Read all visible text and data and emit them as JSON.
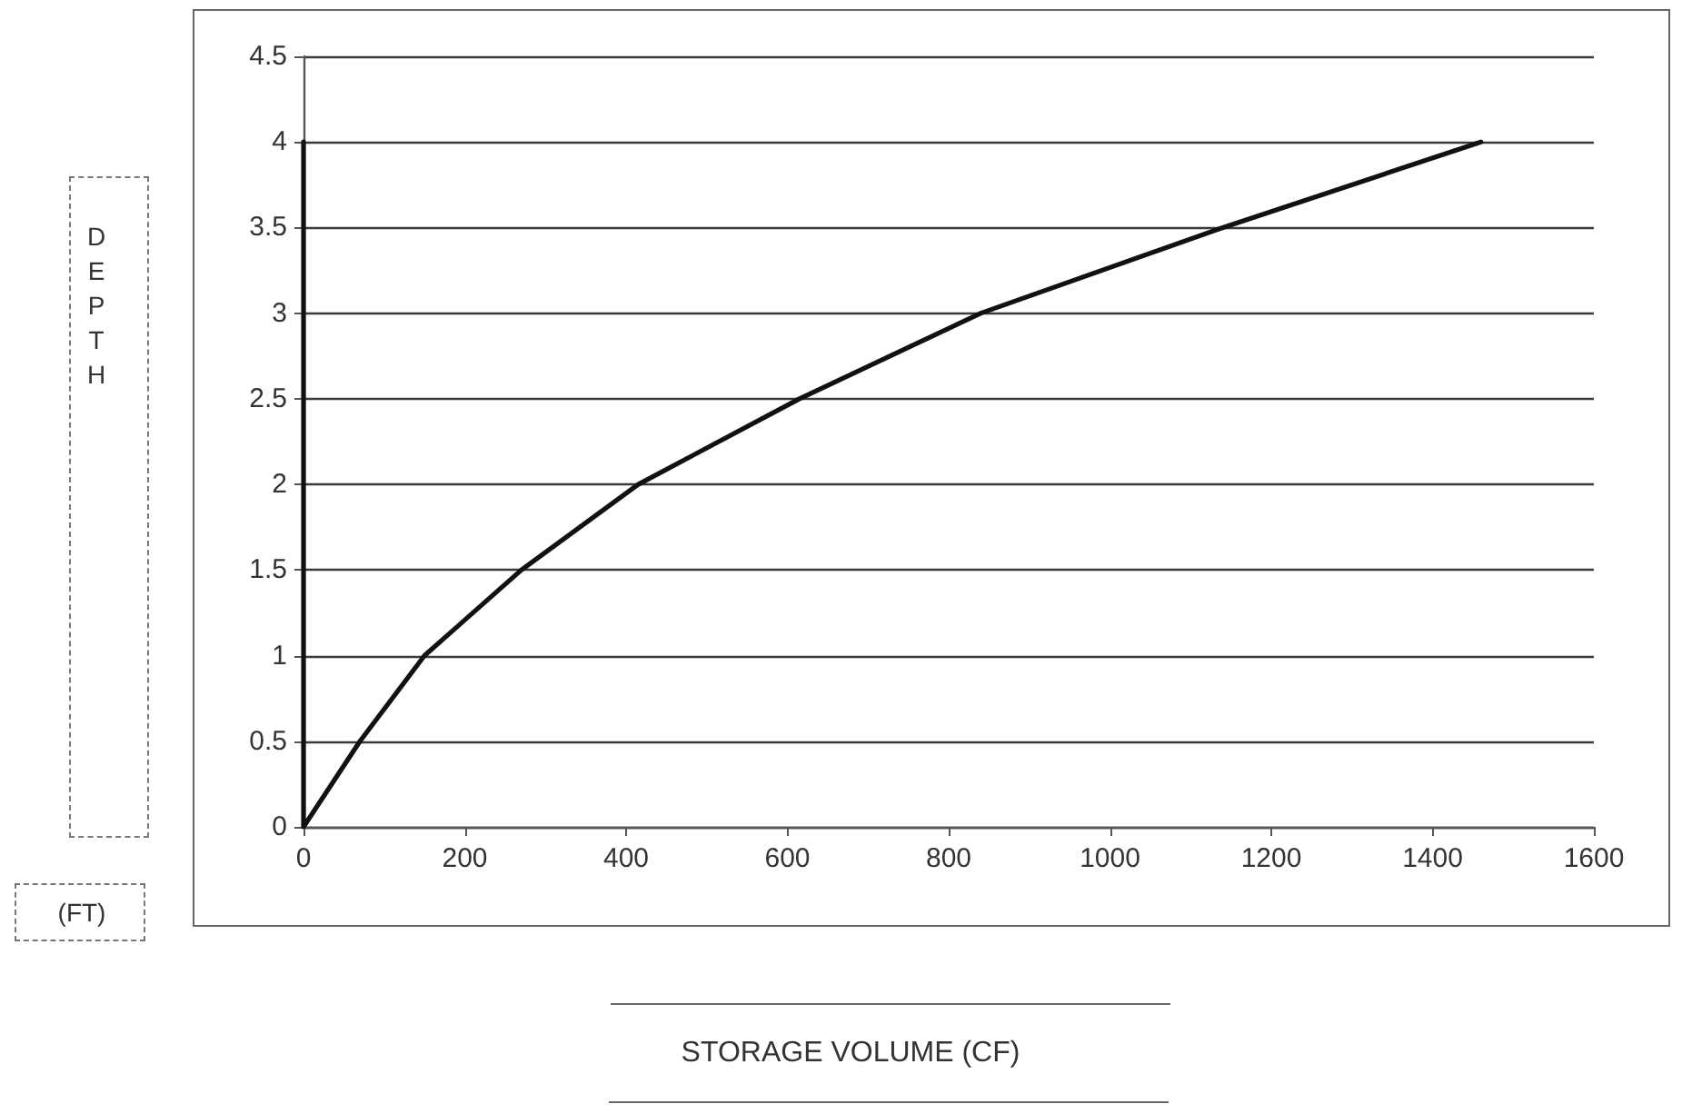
{
  "chart_data": {
    "type": "line",
    "annotations": [
      "DEPTH",
      "(FT)",
      "STORAGE VOLUME (CF)"
    ],
    "x": [
      0,
      0,
      70,
      150,
      270,
      415,
      615,
      840,
      1140,
      1460
    ],
    "values": [
      4,
      0,
      0.5,
      1,
      1.5,
      2,
      2.5,
      3,
      3.5,
      4
    ],
    "color": "#111111",
    "xlim": [
      0,
      1600
    ],
    "xticks": [
      0,
      200,
      400,
      600,
      800,
      1000,
      1200,
      1400,
      1600
    ],
    "ylim": [
      0,
      4.5
    ],
    "yticks": [
      0,
      0.5,
      1,
      1.5,
      2,
      2.5,
      3,
      3.5,
      4,
      4.5
    ],
    "grid": "y",
    "marker": "none",
    "line_style": "solid"
  }
}
